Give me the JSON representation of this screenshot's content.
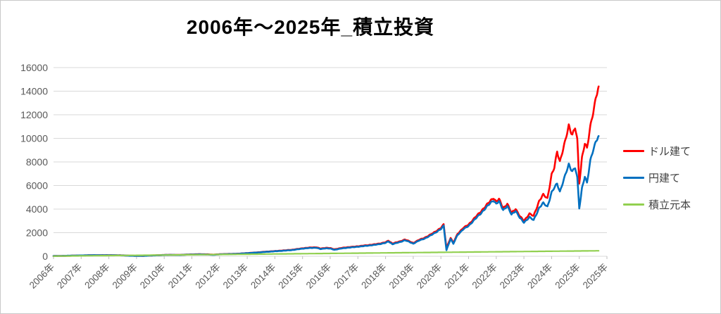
{
  "chart_data": {
    "type": "line",
    "title": "2006年～2025年_積立投資",
    "ylim": [
      0,
      16000
    ],
    "y_ticks": [
      0,
      2000,
      4000,
      6000,
      8000,
      10000,
      12000,
      14000,
      16000
    ],
    "x_labels": [
      "2006年",
      "2007年",
      "2008年",
      "2009年",
      "2010年",
      "2011年",
      "2012年",
      "2013年",
      "2014年",
      "2015年",
      "2016年",
      "2017年",
      "2018年",
      "2019年",
      "2020年",
      "2021年",
      "2022年",
      "2023年",
      "2024年",
      "2025年",
      "2025年"
    ],
    "grid": "horizontal",
    "legend_position": "right",
    "colors": {
      "text": "#595959",
      "gridline": "#D9D9D9",
      "axis": "#BFBFBF",
      "background": "#FFFFFF",
      "border": "#C9C9C9"
    },
    "series": [
      {
        "name": "ドル建て",
        "color": "#FF0000",
        "points": [
          [
            2006.0,
            20
          ],
          [
            2006.3,
            32
          ],
          [
            2006.6,
            46
          ],
          [
            2006.9,
            62
          ],
          [
            2007.2,
            78
          ],
          [
            2007.5,
            92
          ],
          [
            2007.7,
            88
          ],
          [
            2008.0,
            95
          ],
          [
            2008.3,
            84
          ],
          [
            2008.5,
            78
          ],
          [
            2008.75,
            48
          ],
          [
            2009.0,
            42
          ],
          [
            2009.25,
            38
          ],
          [
            2009.5,
            65
          ],
          [
            2009.75,
            88
          ],
          [
            2010.0,
            112
          ],
          [
            2010.25,
            125
          ],
          [
            2010.5,
            113
          ],
          [
            2010.75,
            140
          ],
          [
            2011.0,
            158
          ],
          [
            2011.3,
            172
          ],
          [
            2011.55,
            165
          ],
          [
            2011.75,
            136
          ],
          [
            2012.0,
            172
          ],
          [
            2012.25,
            196
          ],
          [
            2012.5,
            200
          ],
          [
            2012.75,
            228
          ],
          [
            2013.0,
            268
          ],
          [
            2013.25,
            310
          ],
          [
            2013.5,
            355
          ],
          [
            2013.75,
            400
          ],
          [
            2014.0,
            440
          ],
          [
            2014.3,
            495
          ],
          [
            2014.6,
            545
          ],
          [
            2014.8,
            610
          ],
          [
            2015.0,
            680
          ],
          [
            2015.3,
            745
          ],
          [
            2015.5,
            762
          ],
          [
            2015.65,
            652
          ],
          [
            2015.85,
            722
          ],
          [
            2016.0,
            690
          ],
          [
            2016.15,
            592
          ],
          [
            2016.4,
            700
          ],
          [
            2016.6,
            762
          ],
          [
            2016.8,
            800
          ],
          [
            2017.0,
            850
          ],
          [
            2017.3,
            930
          ],
          [
            2017.6,
            1010
          ],
          [
            2017.8,
            1090
          ],
          [
            2018.0,
            1185
          ],
          [
            2018.1,
            1320
          ],
          [
            2018.25,
            1085
          ],
          [
            2018.5,
            1245
          ],
          [
            2018.7,
            1425
          ],
          [
            2018.85,
            1282
          ],
          [
            2019.0,
            1122
          ],
          [
            2019.2,
            1382
          ],
          [
            2019.4,
            1562
          ],
          [
            2019.6,
            1800
          ],
          [
            2019.8,
            2100
          ],
          [
            2020.0,
            2400
          ],
          [
            2020.1,
            2700
          ],
          [
            2020.2,
            700
          ],
          [
            2020.35,
            1560
          ],
          [
            2020.45,
            1140
          ],
          [
            2020.6,
            1900
          ],
          [
            2020.8,
            2380
          ],
          [
            2021.0,
            2700
          ],
          [
            2021.2,
            3200
          ],
          [
            2021.4,
            3700
          ],
          [
            2021.6,
            4200
          ],
          [
            2021.8,
            4750
          ],
          [
            2021.9,
            4950
          ],
          [
            2022.0,
            4620
          ],
          [
            2022.1,
            4850
          ],
          [
            2022.25,
            4100
          ],
          [
            2022.4,
            4420
          ],
          [
            2022.55,
            3700
          ],
          [
            2022.7,
            4020
          ],
          [
            2022.85,
            3400
          ],
          [
            2023.0,
            3010
          ],
          [
            2023.2,
            3600
          ],
          [
            2023.35,
            3420
          ],
          [
            2023.55,
            4680
          ],
          [
            2023.7,
            5220
          ],
          [
            2023.85,
            4920
          ],
          [
            2024.0,
            6900
          ],
          [
            2024.1,
            7500
          ],
          [
            2024.2,
            8900
          ],
          [
            2024.3,
            8050
          ],
          [
            2024.5,
            9800
          ],
          [
            2024.62,
            11100
          ],
          [
            2024.75,
            10300
          ],
          [
            2024.85,
            10900
          ],
          [
            2024.93,
            9800
          ],
          [
            2025.0,
            6200
          ],
          [
            2025.1,
            8400
          ],
          [
            2025.2,
            9600
          ],
          [
            2025.28,
            9100
          ],
          [
            2025.4,
            11000
          ],
          [
            2025.5,
            12250
          ],
          [
            2025.6,
            13400
          ],
          [
            2025.7,
            14400
          ]
        ]
      },
      {
        "name": "円建て",
        "color": "#0070C0",
        "points": [
          [
            2006.0,
            21
          ],
          [
            2006.3,
            34
          ],
          [
            2006.6,
            49
          ],
          [
            2006.9,
            66
          ],
          [
            2007.2,
            82
          ],
          [
            2007.5,
            95
          ],
          [
            2007.7,
            85
          ],
          [
            2008.0,
            92
          ],
          [
            2008.3,
            79
          ],
          [
            2008.5,
            72
          ],
          [
            2008.75,
            42
          ],
          [
            2009.0,
            36
          ],
          [
            2009.25,
            33
          ],
          [
            2009.5,
            60
          ],
          [
            2009.75,
            82
          ],
          [
            2010.0,
            105
          ],
          [
            2010.25,
            117
          ],
          [
            2010.5,
            104
          ],
          [
            2010.75,
            130
          ],
          [
            2011.0,
            146
          ],
          [
            2011.3,
            158
          ],
          [
            2011.55,
            150
          ],
          [
            2011.75,
            122
          ],
          [
            2012.0,
            160
          ],
          [
            2012.25,
            185
          ],
          [
            2012.5,
            190
          ],
          [
            2012.75,
            220
          ],
          [
            2013.0,
            262
          ],
          [
            2013.25,
            300
          ],
          [
            2013.5,
            342
          ],
          [
            2013.75,
            385
          ],
          [
            2014.0,
            422
          ],
          [
            2014.3,
            474
          ],
          [
            2014.6,
            520
          ],
          [
            2014.8,
            583
          ],
          [
            2015.0,
            650
          ],
          [
            2015.3,
            708
          ],
          [
            2015.5,
            722
          ],
          [
            2015.65,
            612
          ],
          [
            2015.85,
            680
          ],
          [
            2016.0,
            650
          ],
          [
            2016.15,
            550
          ],
          [
            2016.4,
            660
          ],
          [
            2016.6,
            722
          ],
          [
            2016.8,
            760
          ],
          [
            2017.0,
            810
          ],
          [
            2017.3,
            886
          ],
          [
            2017.6,
            962
          ],
          [
            2017.8,
            1040
          ],
          [
            2018.0,
            1132
          ],
          [
            2018.1,
            1262
          ],
          [
            2018.25,
            1032
          ],
          [
            2018.5,
            1188
          ],
          [
            2018.7,
            1362
          ],
          [
            2018.85,
            1225
          ],
          [
            2019.0,
            1070
          ],
          [
            2019.2,
            1320
          ],
          [
            2019.4,
            1494
          ],
          [
            2019.6,
            1722
          ],
          [
            2019.8,
            2012
          ],
          [
            2020.0,
            2300
          ],
          [
            2020.1,
            2590
          ],
          [
            2020.2,
            520
          ],
          [
            2020.35,
            1478
          ],
          [
            2020.45,
            1058
          ],
          [
            2020.6,
            1808
          ],
          [
            2020.8,
            2268
          ],
          [
            2021.0,
            2580
          ],
          [
            2021.2,
            3058
          ],
          [
            2021.4,
            3540
          ],
          [
            2021.6,
            4028
          ],
          [
            2021.8,
            4558
          ],
          [
            2021.9,
            4748
          ],
          [
            2022.0,
            4430
          ],
          [
            2022.1,
            4658
          ],
          [
            2022.25,
            3930
          ],
          [
            2022.4,
            4240
          ],
          [
            2022.55,
            3548
          ],
          [
            2022.7,
            3858
          ],
          [
            2022.85,
            3258
          ],
          [
            2023.0,
            2870
          ],
          [
            2023.2,
            3310
          ],
          [
            2023.35,
            3060
          ],
          [
            2023.55,
            4100
          ],
          [
            2023.7,
            4510
          ],
          [
            2023.85,
            4210
          ],
          [
            2024.0,
            5400
          ],
          [
            2024.1,
            5800
          ],
          [
            2024.2,
            6180
          ],
          [
            2024.3,
            5480
          ],
          [
            2024.5,
            6900
          ],
          [
            2024.62,
            7800
          ],
          [
            2024.75,
            7200
          ],
          [
            2024.85,
            7500
          ],
          [
            2024.93,
            6600
          ],
          [
            2025.0,
            4080
          ],
          [
            2025.1,
            5800
          ],
          [
            2025.2,
            6780
          ],
          [
            2025.28,
            6180
          ],
          [
            2025.4,
            8100
          ],
          [
            2025.5,
            9060
          ],
          [
            2025.6,
            9700
          ],
          [
            2025.7,
            10200
          ]
        ]
      },
      {
        "name": "積立元本",
        "color": "#92D050",
        "points": [
          [
            2006.0,
            12
          ],
          [
            2007.0,
            35
          ],
          [
            2008.0,
            58
          ],
          [
            2009.0,
            81
          ],
          [
            2010.0,
            104
          ],
          [
            2011.0,
            127
          ],
          [
            2012.0,
            150
          ],
          [
            2013.0,
            173
          ],
          [
            2014.0,
            196
          ],
          [
            2015.0,
            219
          ],
          [
            2016.0,
            242
          ],
          [
            2017.0,
            265
          ],
          [
            2018.0,
            288
          ],
          [
            2019.0,
            311
          ],
          [
            2020.0,
            334
          ],
          [
            2021.0,
            357
          ],
          [
            2022.0,
            380
          ],
          [
            2023.0,
            403
          ],
          [
            2024.0,
            426
          ],
          [
            2025.0,
            449
          ],
          [
            2025.7,
            465
          ]
        ]
      }
    ]
  }
}
